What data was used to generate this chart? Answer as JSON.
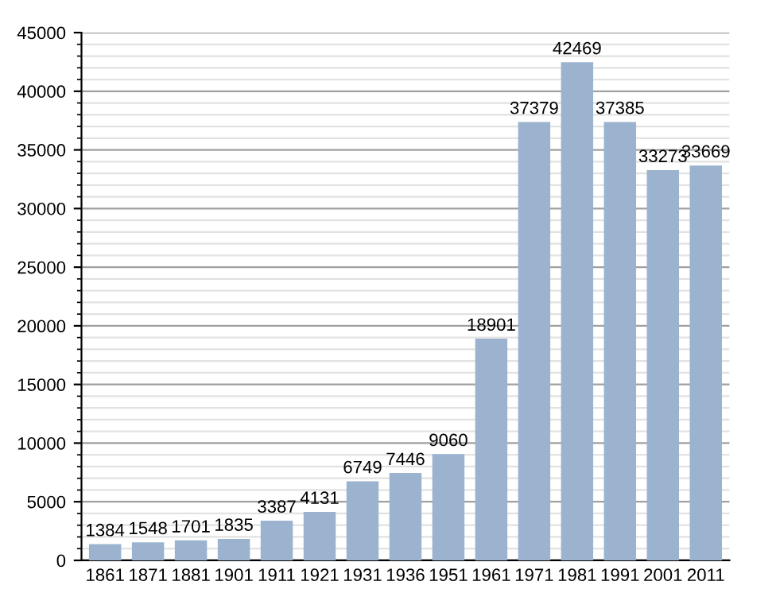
{
  "chart_data": {
    "type": "bar",
    "categories": [
      "1861",
      "1871",
      "1881",
      "1901",
      "1911",
      "1921",
      "1931",
      "1936",
      "1951",
      "1961",
      "1971",
      "1981",
      "1991",
      "2001",
      "2011"
    ],
    "values": [
      1384,
      1548,
      1701,
      1835,
      3387,
      4131,
      6749,
      7446,
      9060,
      18901,
      37379,
      42469,
      37385,
      33273,
      33669
    ],
    "color": "#9bb3cf",
    "ylim": [
      0,
      45000
    ],
    "yticks": [
      0,
      5000,
      10000,
      15000,
      20000,
      25000,
      30000,
      35000,
      40000,
      45000
    ],
    "grid": "y",
    "data_labels": true
  }
}
